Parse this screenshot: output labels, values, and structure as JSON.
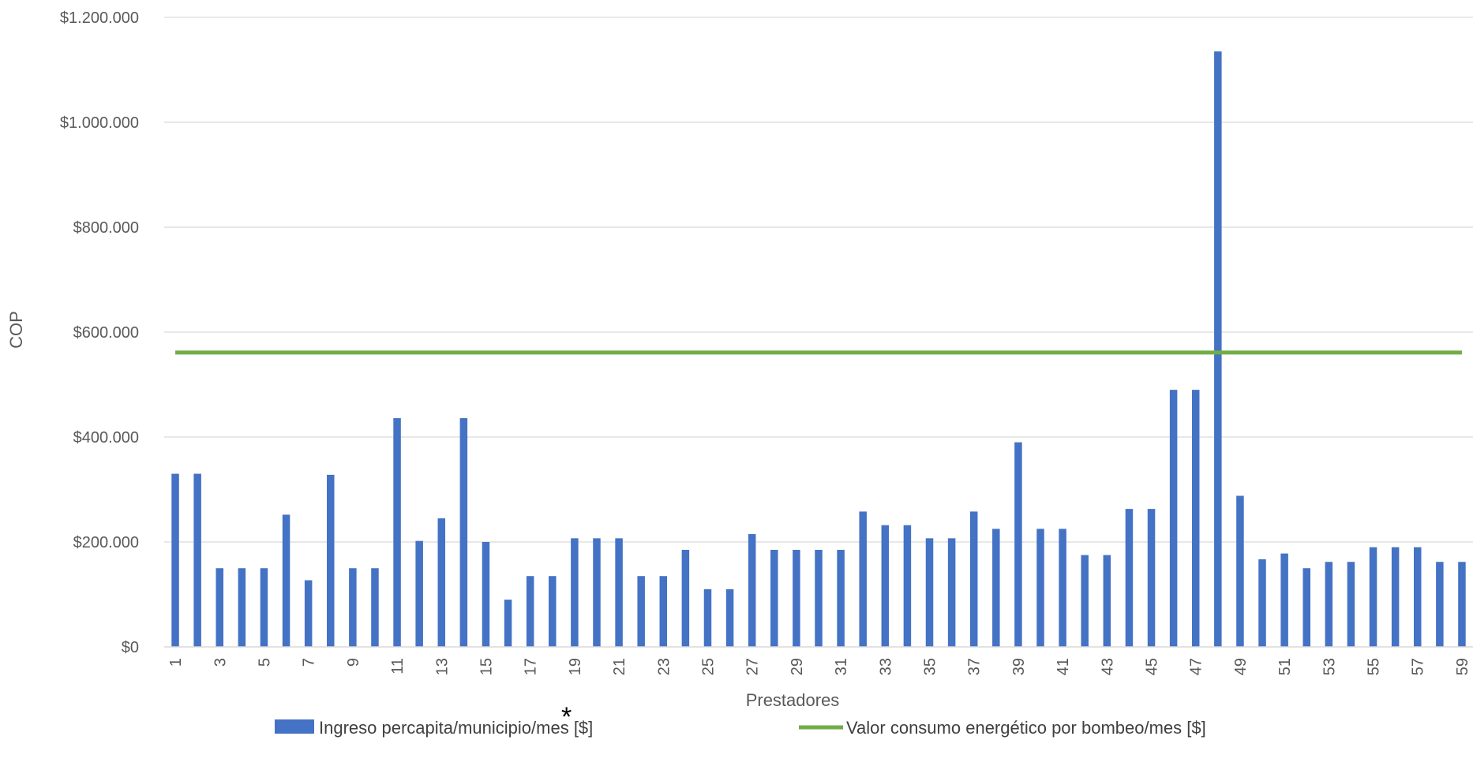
{
  "chart_data": {
    "type": "bar",
    "xlabel": "Prestadores",
    "ylabel": "COP",
    "ylim": [
      0,
      1200000
    ],
    "y_ticks": [
      "$0",
      "$200.000",
      "$400.000",
      "$600.000",
      "$800.000",
      "$1.000.000",
      "$1.200.000"
    ],
    "x_tick_labels": [
      "1",
      "3",
      "5",
      "7",
      "9",
      "11",
      "13",
      "15",
      "17",
      "19",
      "21",
      "23",
      "25",
      "27",
      "29",
      "31",
      "33",
      "35",
      "37",
      "39",
      "41",
      "43",
      "45",
      "47",
      "49",
      "51",
      "53",
      "55",
      "57",
      "59"
    ],
    "grid": true,
    "legend_position": "bottom",
    "categories": [
      1,
      2,
      3,
      4,
      5,
      6,
      7,
      8,
      9,
      10,
      11,
      12,
      13,
      14,
      15,
      16,
      17,
      18,
      19,
      20,
      21,
      22,
      23,
      24,
      25,
      26,
      27,
      28,
      29,
      30,
      31,
      32,
      33,
      34,
      35,
      36,
      37,
      38,
      39,
      40,
      41,
      42,
      43,
      44,
      45,
      46,
      47,
      48,
      49,
      50,
      51,
      52,
      53,
      54,
      55,
      56,
      57,
      58,
      59
    ],
    "series": [
      {
        "name": "Ingreso percapita/municipio/mes [$]",
        "type": "bar",
        "color": "#4472c4",
        "values": [
          330000,
          330000,
          150000,
          150000,
          150000,
          252000,
          127000,
          328000,
          150000,
          150000,
          436000,
          202000,
          245000,
          436000,
          200000,
          90000,
          135000,
          135000,
          207000,
          207000,
          207000,
          135000,
          135000,
          185000,
          110000,
          110000,
          215000,
          185000,
          185000,
          185000,
          185000,
          258000,
          232000,
          232000,
          207000,
          207000,
          258000,
          225000,
          390000,
          225000,
          225000,
          175000,
          175000,
          263000,
          263000,
          490000,
          490000,
          1135000,
          288000,
          167000,
          178000,
          150000,
          162000,
          162000,
          190000,
          190000,
          190000,
          162000,
          162000
        ]
      },
      {
        "name": "Valor consumo energético por bombeo/mes [$]",
        "type": "line",
        "color": "#70ad47",
        "value": 561000
      }
    ],
    "annotation": "*"
  }
}
